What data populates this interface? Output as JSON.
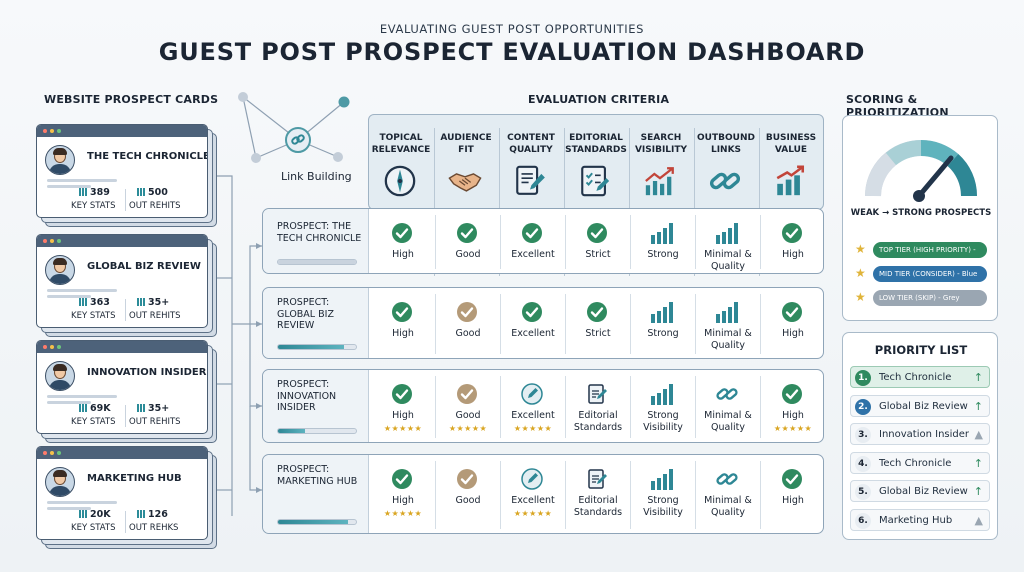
{
  "header": {
    "subtitle": "EVALUATING GUEST POST OPPORTUNITIES",
    "title": "GUEST POST PROSPECT EVALUATION DASHBOARD"
  },
  "sections": {
    "cards": "WEBSITE PROSPECT CARDS",
    "criteria": "EVALUATION CRITERIA",
    "scoring": "SCORING & PRIORITIZATION"
  },
  "network_label": "Link Building",
  "cards": [
    {
      "name": "THE TECH CHRONICLE",
      "stat1": "389",
      "stat1_label": "KEY STATS",
      "stat2": "500",
      "stat2_label": "OUT REHITS"
    },
    {
      "name": "GLOBAL BIZ REVIEW",
      "stat1": "363",
      "stat1_label": "KEY STATS",
      "stat2": "35+",
      "stat2_label": "OUT REHITS"
    },
    {
      "name": "INNOVATION INSIDER",
      "stat1": "69K",
      "stat1_label": "KEY STATS",
      "stat2": "35+",
      "stat2_label": "OUT REHITS"
    },
    {
      "name": "MARKETING HUB",
      "stat1": "20K",
      "stat1_label": "KEY STATS",
      "stat2": "126",
      "stat2_label": "OUT REHKS"
    }
  ],
  "criteria": [
    {
      "label": "TOPICAL RELEVANCE",
      "icon": "compass-icon"
    },
    {
      "label": "AUDIENCE FIT",
      "icon": "handshake-icon"
    },
    {
      "label": "CONTENT QUALITY",
      "icon": "document-pen-icon"
    },
    {
      "label": "EDITORIAL STANDARDS",
      "icon": "checklist-icon"
    },
    {
      "label": "SEARCH VISIBILITY",
      "icon": "growth-chart-icon"
    },
    {
      "label": "OUTBOUND LINKS",
      "icon": "chain-link-icon"
    },
    {
      "label": "BUSINESS VALUE",
      "icon": "bar-arrow-icon"
    }
  ],
  "prospects": [
    {
      "title": "PROSPECT: THE TECH CHRONICLE",
      "progress": 1.0,
      "progress_color": "#c9d3de",
      "cells": [
        {
          "icon": "check-icon",
          "label": "High",
          "stars": ""
        },
        {
          "icon": "check-icon",
          "label": "Good",
          "stars": ""
        },
        {
          "icon": "check-icon",
          "label": "Excellent",
          "stars": ""
        },
        {
          "icon": "check-icon",
          "label": "Strict",
          "stars": ""
        },
        {
          "icon": "bars-icon",
          "label": "Strong",
          "stars": ""
        },
        {
          "icon": "bars-icon",
          "label": "Minimal & Quality",
          "stars": ""
        },
        {
          "icon": "check-icon",
          "label": "High",
          "stars": ""
        }
      ]
    },
    {
      "title": "PROSPECT: GLOBAL BIZ REVIEW",
      "progress": 0.85,
      "progress_color": "#2e8795",
      "cells": [
        {
          "icon": "check-icon",
          "label": "High",
          "stars": ""
        },
        {
          "icon": "check-tan-icon",
          "label": "Good",
          "stars": ""
        },
        {
          "icon": "check-icon",
          "label": "Excellent",
          "stars": ""
        },
        {
          "icon": "check-icon",
          "label": "Strict",
          "stars": ""
        },
        {
          "icon": "bars-icon",
          "label": "Strong",
          "stars": ""
        },
        {
          "icon": "bars-icon",
          "label": "Minimal & Quality",
          "stars": ""
        },
        {
          "icon": "check-icon",
          "label": "High",
          "stars": ""
        }
      ]
    },
    {
      "title": "PROSPECT: INNOVATION INSIDER",
      "progress": 0.35,
      "progress_color": "#2e8795",
      "cells": [
        {
          "icon": "check-icon",
          "label": "High",
          "stars": "★★★★★"
        },
        {
          "icon": "check-tan-icon",
          "label": "Good",
          "stars": "★★★★★"
        },
        {
          "icon": "pen-icon",
          "label": "Excellent",
          "stars": "★★★★★"
        },
        {
          "icon": "doc-icon",
          "label": "Editorial Standards",
          "stars": ""
        },
        {
          "icon": "bars-icon",
          "label": "Strong Visibility",
          "stars": ""
        },
        {
          "icon": "chain-link-icon",
          "label": "Minimal & Quality",
          "stars": ""
        },
        {
          "icon": "check-icon",
          "label": "High",
          "stars": "★★★★★"
        }
      ]
    },
    {
      "title": "PROSPECT: MARKETING HUB",
      "progress": 0.9,
      "progress_color": "#2e8795",
      "cells": [
        {
          "icon": "check-icon",
          "label": "High",
          "stars": "★★★★★"
        },
        {
          "icon": "check-tan-icon",
          "label": "Good",
          "stars": ""
        },
        {
          "icon": "pen-icon",
          "label": "Excellent",
          "stars": "★★★★★"
        },
        {
          "icon": "doc-icon",
          "label": "Editorial Standards",
          "stars": ""
        },
        {
          "icon": "bars-icon",
          "label": "Strong Visibility",
          "stars": ""
        },
        {
          "icon": "chain-link-icon",
          "label": "Minimal & Quality",
          "stars": ""
        },
        {
          "icon": "check-icon",
          "label": "High",
          "stars": ""
        }
      ]
    }
  ],
  "scoring": {
    "gauge_caption": "WEAK → STRONG PROSPECTS",
    "tiers": [
      {
        "label": "TOP TIER (HIGH PRIORITY) -",
        "color": "#2f8a5f",
        "text_color": "#ffffff"
      },
      {
        "label": "MID TIER (CONSIDER) - Blue",
        "color": "#2f72a8",
        "text_color": "#ffffff"
      },
      {
        "label": "LOW TIER (SKIP) - Grey",
        "color": "#9aa6b2",
        "text_color": "#ffffff"
      }
    ]
  },
  "priority": {
    "title": "PRIORITY LIST",
    "items": [
      {
        "num": "1.",
        "name": "Tech Chronicle",
        "arrow": "↑",
        "num_bg": "#2f8a5f",
        "highlight": true
      },
      {
        "num": "2.",
        "name": "Global Biz Review",
        "arrow": "↑",
        "num_bg": "#2f72a8",
        "highlight": false
      },
      {
        "num": "3.",
        "name": "Innovation Insider",
        "arrow": "▲",
        "num_bg": "#e8edf2",
        "highlight": false
      },
      {
        "num": "4.",
        "name": "Tech Chronicle",
        "arrow": "↑",
        "num_bg": "#e8edf2",
        "highlight": false
      },
      {
        "num": "5.",
        "name": "Global Biz Review",
        "arrow": "↑",
        "num_bg": "#e8edf2",
        "highlight": false
      },
      {
        "num": "6.",
        "name": "Marketing Hub",
        "arrow": "▲",
        "num_bg": "#e8edf2",
        "highlight": false
      }
    ]
  },
  "colors": {
    "teal": "#2e8795",
    "green_check": "#2f8a5f",
    "tan_check": "#b49a78",
    "star": "#d9a521"
  }
}
